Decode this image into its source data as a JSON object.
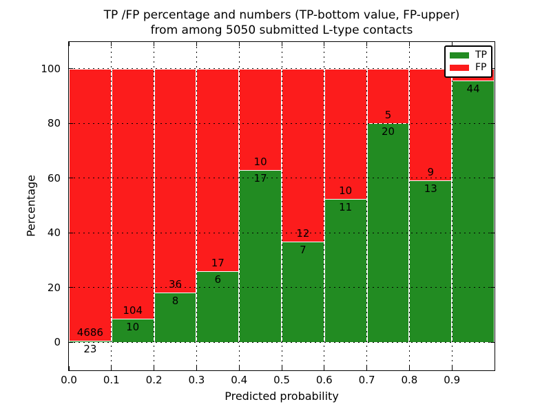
{
  "title": {
    "line1": "TP /FP percentage and numbers (TP-bottom value, FP-upper)",
    "line2": "from among 5050 submitted L-type contacts"
  },
  "axes": {
    "xlabel": "Predicted probability",
    "ylabel": "Percentage"
  },
  "legend": {
    "position": "upper right",
    "items": [
      {
        "label": "TP",
        "color": "#228b22"
      },
      {
        "label": "FP",
        "color": "#fc1c1c"
      }
    ]
  },
  "colors": {
    "tp": "#228b22",
    "fp": "#fc1c1c",
    "bar_edge": "#ffffff",
    "grid": "#000000",
    "frame": "#000000",
    "background": "#ffffff"
  },
  "chart_data": {
    "type": "bar",
    "stacked": true,
    "title": "TP /FP percentage and numbers (TP-bottom value, FP-upper) from among 5050 submitted L-type contacts",
    "xlabel": "Predicted probability",
    "ylabel": "Percentage",
    "xlim": [
      0.0,
      1.0
    ],
    "ylim": [
      -10.2,
      109.7
    ],
    "x_tick_labels": [
      "0.0",
      "0.1",
      "0.2",
      "0.3",
      "0.4",
      "0.5",
      "0.6",
      "0.7",
      "0.8",
      "0.9"
    ],
    "y_tick_values": [
      0,
      20,
      40,
      60,
      80,
      100
    ],
    "grid": true,
    "series": [
      {
        "name": "TP",
        "color": "#228b22"
      },
      {
        "name": "FP",
        "color": "#fc1c1c"
      }
    ],
    "bars": [
      {
        "x0": 0.0,
        "x1": 0.1,
        "tp": 23,
        "fp": 4686,
        "tp_pct": 0.49
      },
      {
        "x0": 0.1,
        "x1": 0.2,
        "tp": 10,
        "fp": 104,
        "tp_pct": 8.77
      },
      {
        "x0": 0.2,
        "x1": 0.3,
        "tp": 8,
        "fp": 36,
        "tp_pct": 18.18
      },
      {
        "x0": 0.3,
        "x1": 0.4,
        "tp": 6,
        "fp": 17,
        "tp_pct": 26.09
      },
      {
        "x0": 0.4,
        "x1": 0.5,
        "tp": 17,
        "fp": 10,
        "tp_pct": 62.96
      },
      {
        "x0": 0.5,
        "x1": 0.6,
        "tp": 7,
        "fp": 12,
        "tp_pct": 36.84
      },
      {
        "x0": 0.6,
        "x1": 0.7,
        "tp": 11,
        "fp": 10,
        "tp_pct": 52.38
      },
      {
        "x0": 0.7,
        "x1": 0.8,
        "tp": 20,
        "fp": 5,
        "tp_pct": 80.0
      },
      {
        "x0": 0.8,
        "x1": 0.9,
        "tp": 13,
        "fp": 9,
        "tp_pct": 59.09
      },
      {
        "x0": 0.9,
        "x1": 1.0,
        "tp": 44,
        "fp": null,
        "tp_pct": 95.65
      }
    ]
  }
}
